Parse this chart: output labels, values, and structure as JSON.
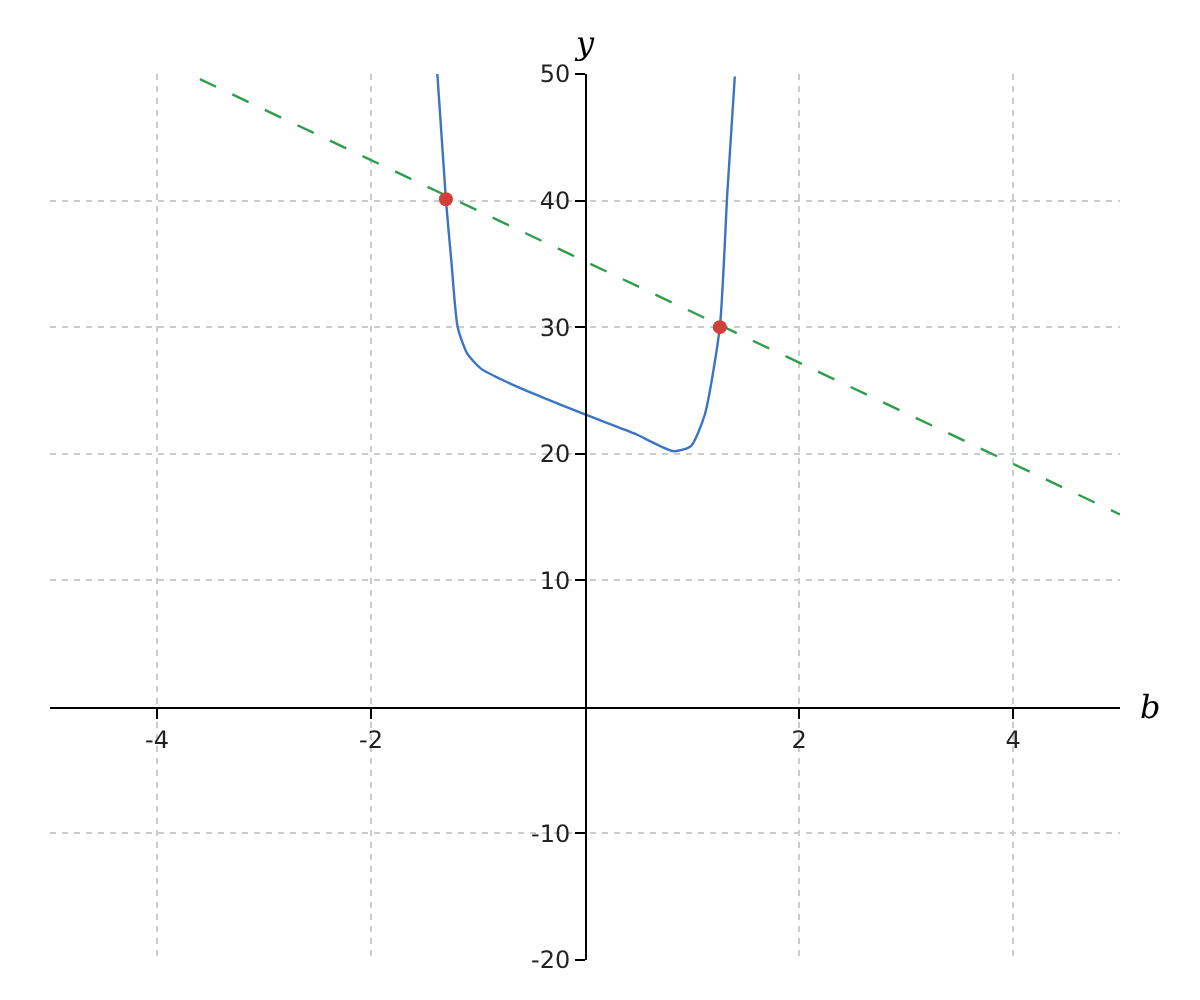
{
  "chart_data": {
    "type": "line",
    "xlabel": "b",
    "ylabel": "y",
    "xlim": [
      -5,
      5
    ],
    "ylim": [
      -20,
      50
    ],
    "xticks": [
      -4,
      -2,
      2,
      4
    ],
    "yticks": [
      -20,
      -10,
      10,
      20,
      30,
      40,
      50
    ],
    "grid": true,
    "series": [
      {
        "color": "#3a75c4",
        "line_style": "solid",
        "x": [
          -1.38,
          -1.3,
          -1.25,
          -1.19,
          -1.1,
          -0.97,
          -0.79,
          -0.47,
          0,
          0.46,
          0.83,
          0.99,
          1.12,
          1.26,
          1.33,
          1.4
        ],
        "values": [
          50,
          40.1,
          35.3,
          30,
          27.9,
          26.7,
          25.9,
          24.7,
          23.1,
          21.6,
          20.2,
          20.6,
          23.1,
          30,
          40.6,
          49.8
        ]
      },
      {
        "type": "line",
        "color": "#2e9e4a",
        "line_style": "dashed",
        "x": [
          -3.6,
          5
        ],
        "values": [
          49.6,
          15.2
        ]
      },
      {
        "type": "scatter",
        "color": "#d13f3a",
        "marker": "circle",
        "x": [
          -1.3,
          1.26
        ],
        "values": [
          40.1,
          30
        ]
      }
    ]
  }
}
